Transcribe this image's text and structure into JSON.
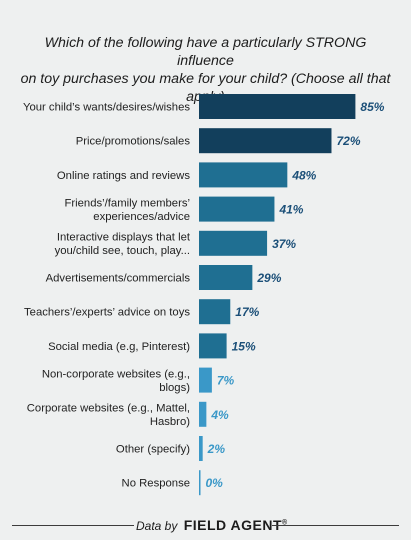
{
  "title_line1": "Which of the following have a particularly STRONG influence",
  "title_line2": "on toy purchases you make for your child? (Choose all that apply)",
  "footer": {
    "data_by": "Data by",
    "brand": "FIELD AGENT",
    "reg": "®"
  },
  "colors": {
    "background": "#eef0f0",
    "bar_dark": "#123f5c",
    "bar_mid": "#1f6f92",
    "bar_light": "#3a98c8",
    "value_label": "#1b4f78"
  },
  "chart_data": {
    "type": "bar",
    "orientation": "horizontal",
    "categories": [
      [
        "Your child’s wants/desires/wishes"
      ],
      [
        "Price/promotions/sales"
      ],
      [
        "Online ratings and reviews"
      ],
      [
        "Friends’/family members’",
        "experiences/advice"
      ],
      [
        "Interactive displays that let",
        "you/child see, touch, play..."
      ],
      [
        "Advertisements/commercials"
      ],
      [
        "Teachers’/experts’ advice on toys"
      ],
      [
        "Social media (e.g, Pinterest)"
      ],
      [
        "Non-corporate websites (e.g.,",
        "blogs)"
      ],
      [
        "Corporate websites (e.g., Mattel,",
        "Hasbro)"
      ],
      [
        "Other (specify)"
      ],
      [
        "No Response"
      ]
    ],
    "values": [
      85,
      72,
      48,
      41,
      37,
      29,
      17,
      15,
      7,
      4,
      2,
      0
    ],
    "value_labels": [
      "85%",
      "72%",
      "48%",
      "41%",
      "37%",
      "29%",
      "17%",
      "15%",
      "7%",
      "4%",
      "2%",
      "0%"
    ],
    "xlim": [
      0,
      100
    ],
    "grid": false,
    "legend": "none"
  }
}
